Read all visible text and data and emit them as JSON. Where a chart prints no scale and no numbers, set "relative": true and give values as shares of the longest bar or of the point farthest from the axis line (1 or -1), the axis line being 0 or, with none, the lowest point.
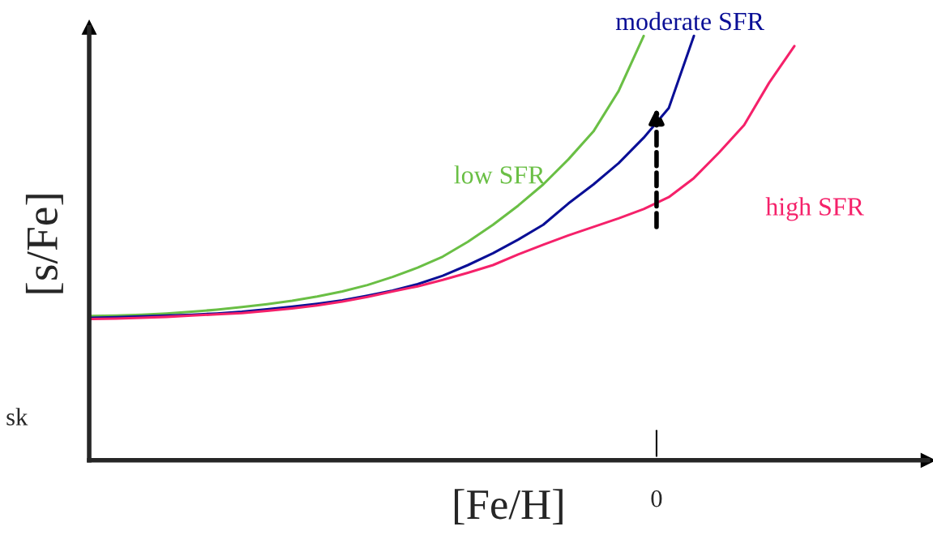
{
  "chart_data": {
    "type": "line",
    "relative": true,
    "xlabel": "[Fe/H]",
    "ylabel": "[s/Fe]",
    "marker": "none",
    "line_style": "solid",
    "annotations": [
      "sk",
      "0"
    ],
    "categories": [
      null,
      null,
      null,
      null,
      null,
      null,
      null,
      null,
      null,
      null,
      null,
      null,
      null,
      null,
      null,
      null,
      null,
      null,
      null,
      null,
      null,
      null,
      null,
      null,
      null,
      null,
      null,
      null,
      null
    ],
    "series": [
      {
        "name": "low SFR",
        "color": "#6abf45",
        "values": [
          0.34,
          0.341,
          0.343,
          0.346,
          0.35,
          0.355,
          0.361,
          0.368,
          0.376,
          0.386,
          0.398,
          0.413,
          0.432,
          0.454,
          0.48,
          0.515,
          0.555,
          0.6,
          0.65,
          0.709,
          0.775,
          0.87,
          1.0,
          null,
          null,
          null,
          null,
          null,
          null
        ]
      },
      {
        "name": "moderate SFR",
        "color": "#0a0f96",
        "values": [
          0.336,
          0.337,
          0.339,
          0.341,
          0.343,
          0.346,
          0.35,
          0.356,
          0.362,
          0.369,
          0.377,
          0.388,
          0.4,
          0.415,
          0.435,
          0.46,
          0.488,
          0.52,
          0.555,
          0.605,
          0.65,
          0.7,
          0.76,
          0.83,
          1.0,
          null,
          null,
          null,
          null
        ]
      },
      {
        "name": "high SFR",
        "color": "#f5216a",
        "values": [
          0.333,
          0.334,
          0.336,
          0.338,
          0.341,
          0.344,
          0.347,
          0.352,
          0.358,
          0.365,
          0.374,
          0.385,
          0.398,
          0.41,
          0.425,
          0.442,
          0.46,
          0.485,
          0.508,
          0.53,
          0.55,
          0.57,
          0.592,
          0.62,
          0.665,
          0.725,
          0.79,
          0.89,
          0.976
        ]
      }
    ]
  }
}
